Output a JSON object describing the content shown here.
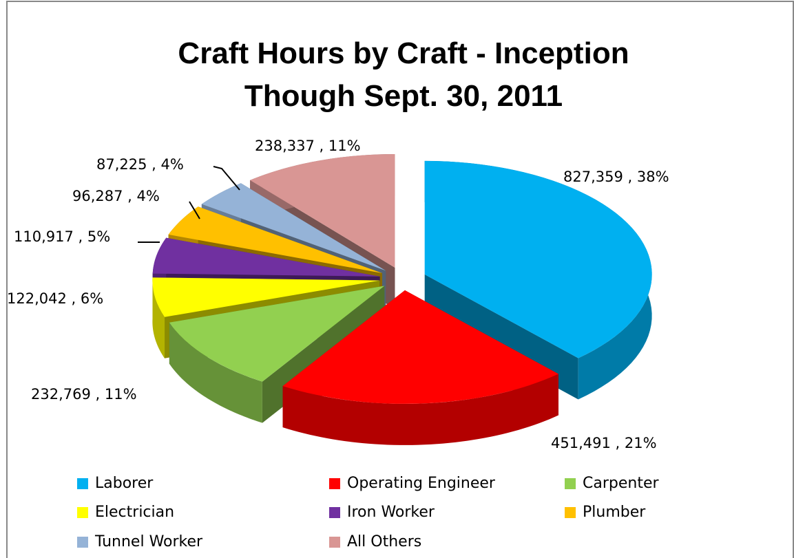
{
  "chart_data": {
    "type": "pie",
    "title": "Craft Hours by Craft - Inception Though  Sept. 30, 2011",
    "categories": [
      "Laborer",
      "Operating Engineer",
      "Carpenter",
      "Electrician",
      "Iron Worker",
      "Plumber",
      "Tunnel Worker",
      "All Others"
    ],
    "values": [
      827359,
      451491,
      232769,
      122042,
      110917,
      96287,
      87225,
      238337
    ],
    "value_labels": [
      "827,359 , 38%",
      "451,491 , 21%",
      "232,769 , 11%",
      "122,042 , 6%",
      "110,917 , 5%",
      "96,287 , 4%",
      "87,225 , 4%",
      "238,337 , 11%"
    ],
    "colors": [
      "#00b0f0",
      "#ff0000",
      "#92d050",
      "#ffff00",
      "#7030a0",
      "#ffc000",
      "#95b3d7",
      "#d99694"
    ],
    "legend": "bottom"
  }
}
